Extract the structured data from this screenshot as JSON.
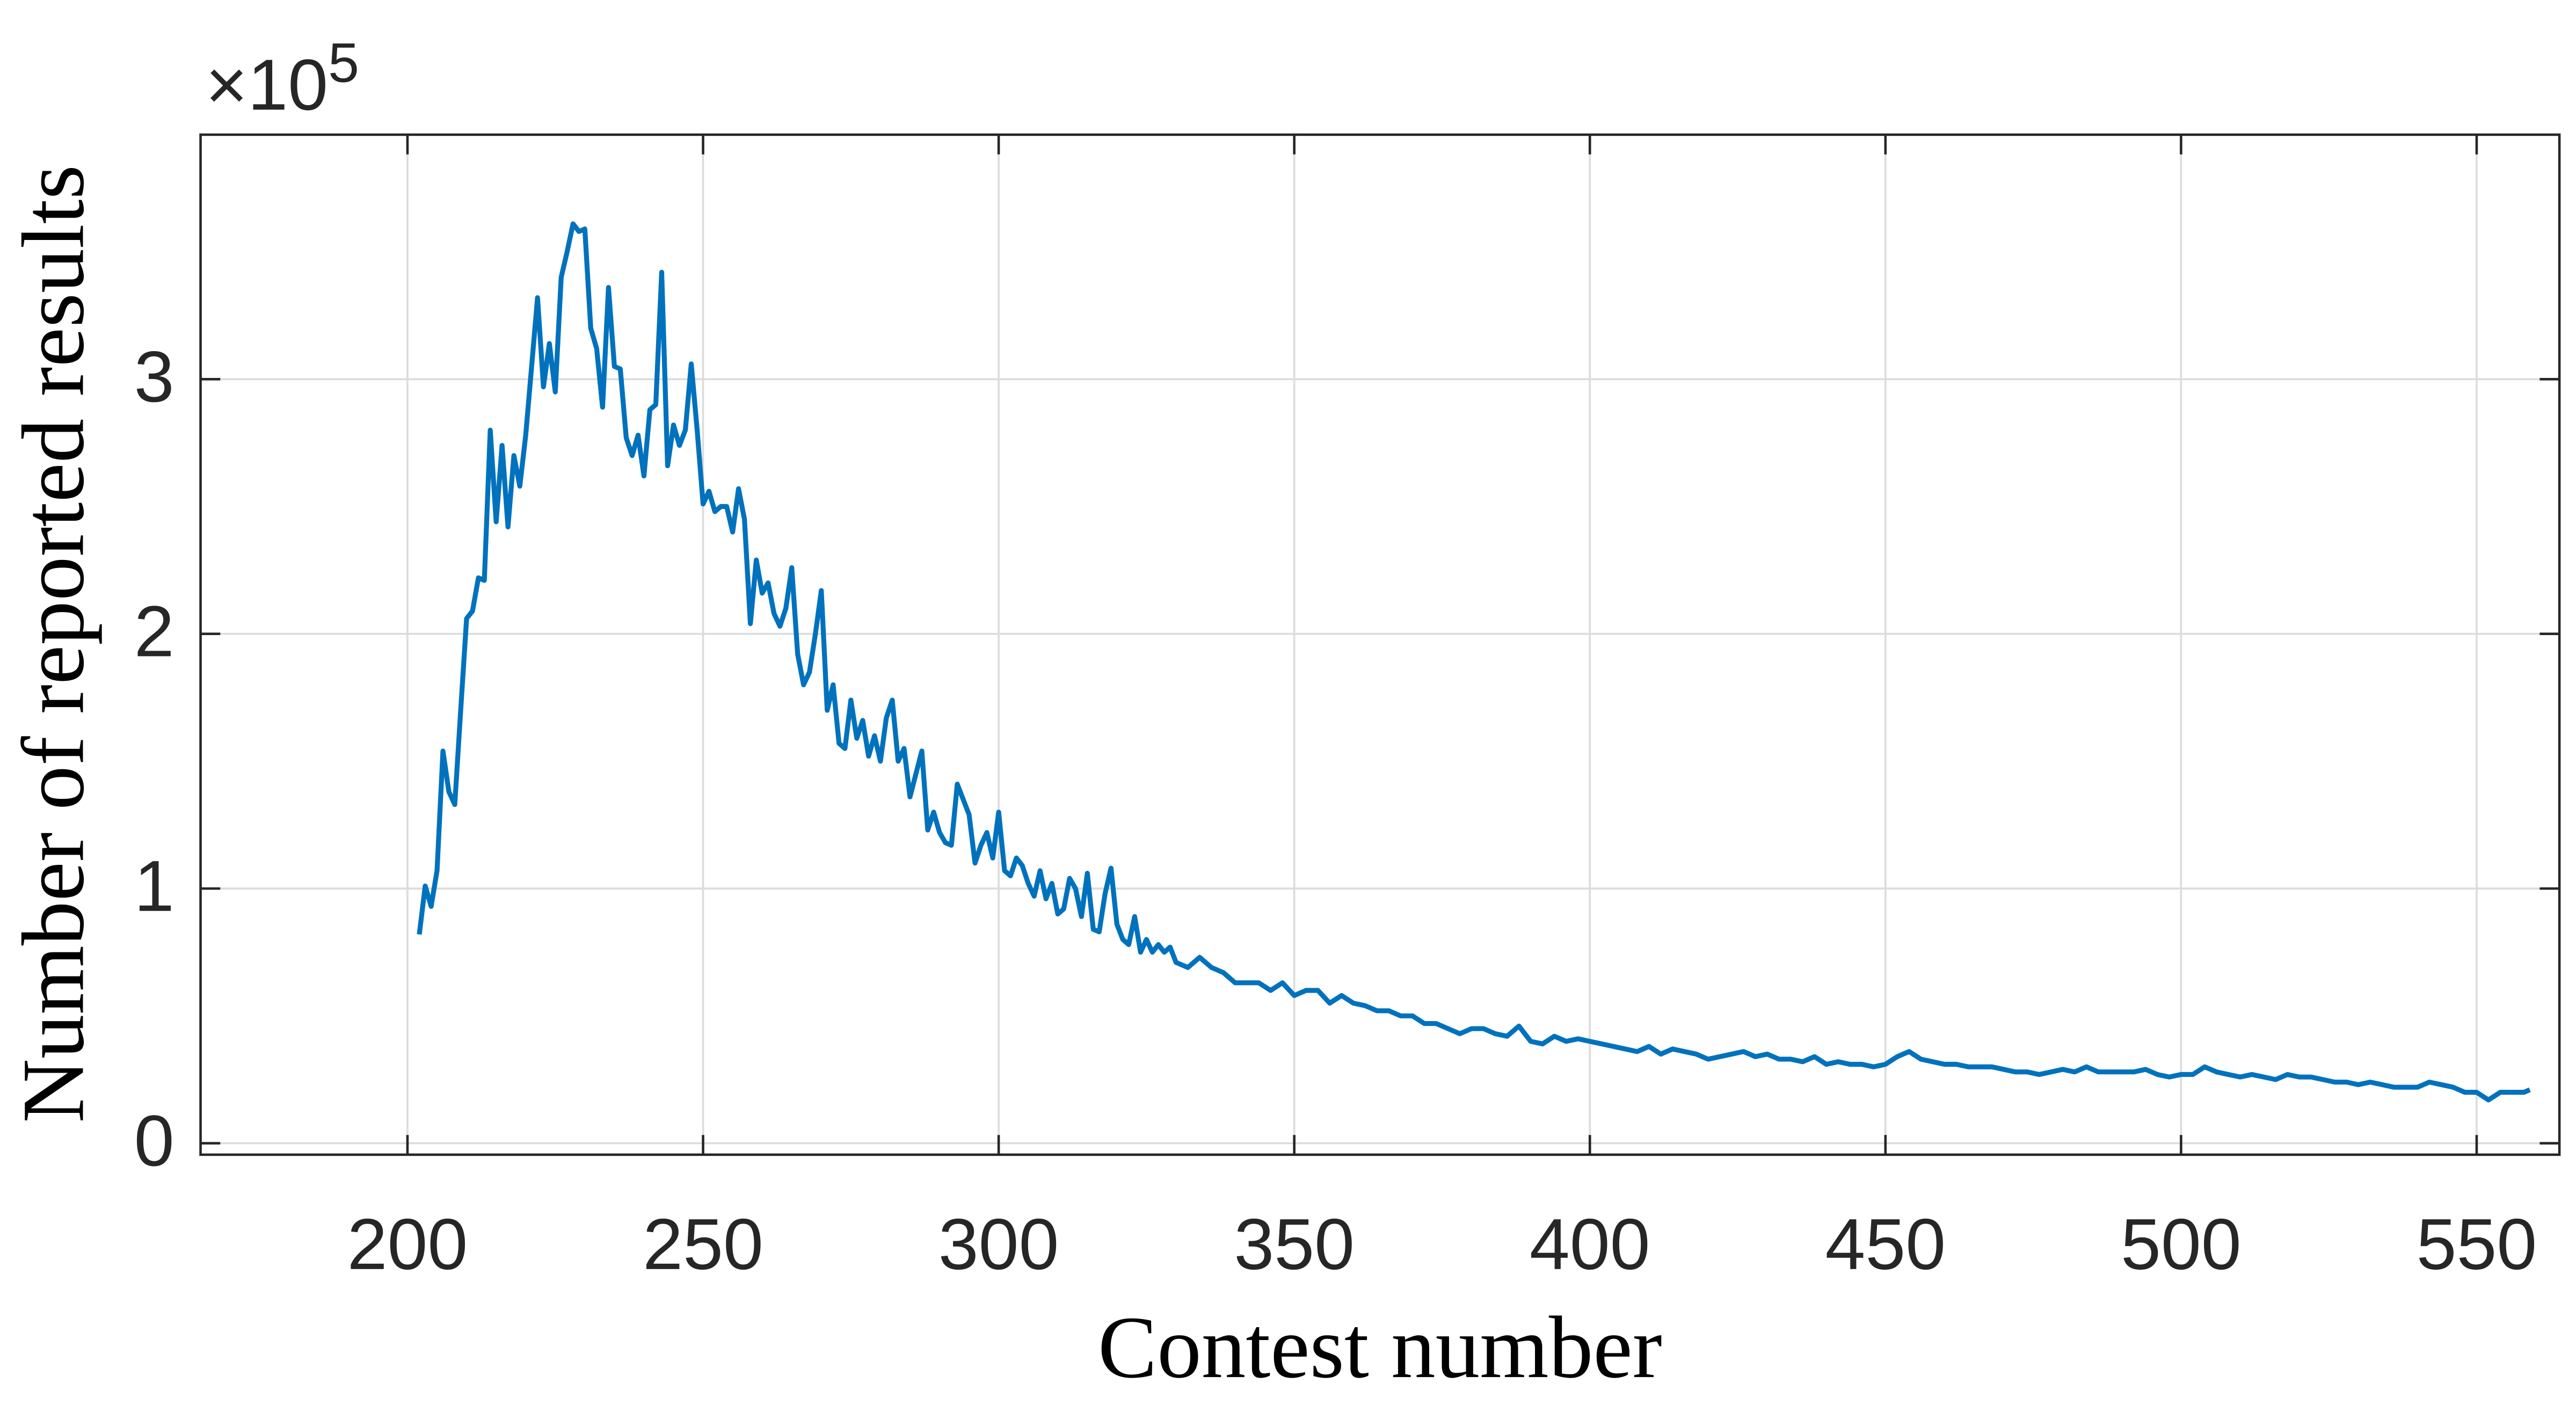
{
  "chart_data": {
    "type": "line",
    "xlabel": "Contest number",
    "ylabel": "Number of reported results",
    "y_multiplier": "×10",
    "y_multiplier_exponent": "5",
    "xlim": [
      165,
      564
    ],
    "xticks": [
      200,
      250,
      300,
      350,
      400,
      450,
      500,
      550
    ],
    "ylim": [
      -0.045,
      3.96
    ],
    "yticks": [
      0,
      1,
      2,
      3
    ],
    "grid": true,
    "series": [
      {
        "color": "#0072bd",
        "x": [
          202,
          203,
          204,
          205,
          206,
          207,
          208,
          209,
          210,
          211,
          212,
          213,
          214,
          215,
          216,
          217,
          218,
          219,
          220,
          221,
          222,
          223,
          224,
          225,
          226,
          227,
          228,
          229,
          230,
          231,
          232,
          233,
          234,
          235,
          236,
          237,
          238,
          239,
          240,
          241,
          242,
          243,
          244,
          245,
          246,
          247,
          248,
          249,
          250,
          251,
          252,
          253,
          254,
          255,
          256,
          257,
          258,
          259,
          260,
          261,
          262,
          263,
          264,
          265,
          266,
          267,
          268,
          269,
          270,
          271,
          272,
          273,
          274,
          275,
          276,
          277,
          278,
          279,
          280,
          281,
          282,
          283,
          284,
          285,
          286,
          287,
          288,
          289,
          290,
          291,
          292,
          293,
          294,
          295,
          296,
          297,
          298,
          299,
          300,
          301,
          302,
          303,
          304,
          305,
          306,
          307,
          308,
          309,
          310,
          311,
          312,
          313,
          314,
          315,
          316,
          317,
          318,
          319,
          320,
          321,
          322,
          323,
          324,
          325,
          326,
          327,
          328,
          329,
          330,
          332,
          334,
          336,
          338,
          340,
          342,
          344,
          346,
          348,
          350,
          352,
          354,
          356,
          358,
          360,
          362,
          364,
          366,
          368,
          370,
          372,
          374,
          376,
          378,
          380,
          382,
          384,
          386,
          388,
          390,
          392,
          394,
          396,
          398,
          400,
          402,
          404,
          406,
          408,
          410,
          412,
          414,
          416,
          418,
          420,
          422,
          424,
          426,
          428,
          430,
          432,
          434,
          436,
          438,
          440,
          442,
          444,
          446,
          448,
          450,
          452,
          454,
          456,
          458,
          460,
          462,
          464,
          466,
          468,
          470,
          472,
          474,
          476,
          478,
          480,
          482,
          484,
          486,
          488,
          490,
          492,
          494,
          496,
          498,
          500,
          502,
          504,
          506,
          508,
          510,
          512,
          514,
          516,
          518,
          520,
          522,
          524,
          526,
          528,
          530,
          532,
          534,
          536,
          538,
          540,
          542,
          544,
          546,
          548,
          550,
          552,
          554,
          556,
          558,
          559
        ],
        "values": [
          0.82,
          1.01,
          0.93,
          1.07,
          1.54,
          1.38,
          1.33,
          1.7,
          2.06,
          2.09,
          2.22,
          2.21,
          2.8,
          2.44,
          2.74,
          2.42,
          2.7,
          2.58,
          2.78,
          3.05,
          3.32,
          2.97,
          3.14,
          2.95,
          3.4,
          3.5,
          3.61,
          3.58,
          3.59,
          3.2,
          3.12,
          2.89,
          3.36,
          3.05,
          3.04,
          2.77,
          2.7,
          2.78,
          2.62,
          2.88,
          2.9,
          3.42,
          2.66,
          2.82,
          2.74,
          2.8,
          3.06,
          2.8,
          2.51,
          2.56,
          2.48,
          2.5,
          2.5,
          2.4,
          2.57,
          2.45,
          2.04,
          2.29,
          2.16,
          2.2,
          2.08,
          2.03,
          2.1,
          2.26,
          1.92,
          1.8,
          1.85,
          2.0,
          2.17,
          1.7,
          1.8,
          1.57,
          1.55,
          1.74,
          1.59,
          1.66,
          1.52,
          1.6,
          1.5,
          1.67,
          1.74,
          1.5,
          1.55,
          1.36,
          1.45,
          1.54,
          1.23,
          1.3,
          1.22,
          1.18,
          1.17,
          1.41,
          1.35,
          1.29,
          1.1,
          1.17,
          1.22,
          1.12,
          1.3,
          1.07,
          1.05,
          1.12,
          1.09,
          1.02,
          0.97,
          1.07,
          0.96,
          1.02,
          0.9,
          0.92,
          1.04,
          1.0,
          0.89,
          1.06,
          0.84,
          0.83,
          0.98,
          1.08,
          0.86,
          0.8,
          0.78,
          0.89,
          0.75,
          0.8,
          0.75,
          0.78,
          0.75,
          0.77,
          0.71,
          0.69,
          0.73,
          0.69,
          0.67,
          0.63,
          0.63,
          0.63,
          0.6,
          0.63,
          0.58,
          0.6,
          0.6,
          0.55,
          0.58,
          0.55,
          0.54,
          0.52,
          0.52,
          0.5,
          0.5,
          0.47,
          0.47,
          0.45,
          0.43,
          0.45,
          0.45,
          0.43,
          0.42,
          0.46,
          0.4,
          0.39,
          0.42,
          0.4,
          0.41,
          0.4,
          0.39,
          0.38,
          0.37,
          0.36,
          0.38,
          0.35,
          0.37,
          0.36,
          0.35,
          0.33,
          0.34,
          0.35,
          0.36,
          0.34,
          0.35,
          0.33,
          0.33,
          0.32,
          0.34,
          0.31,
          0.32,
          0.31,
          0.31,
          0.3,
          0.31,
          0.34,
          0.36,
          0.33,
          0.32,
          0.31,
          0.31,
          0.3,
          0.3,
          0.3,
          0.29,
          0.28,
          0.28,
          0.27,
          0.28,
          0.29,
          0.28,
          0.3,
          0.28,
          0.28,
          0.28,
          0.28,
          0.29,
          0.27,
          0.26,
          0.27,
          0.27,
          0.3,
          0.28,
          0.27,
          0.26,
          0.27,
          0.26,
          0.25,
          0.27,
          0.26,
          0.26,
          0.25,
          0.24,
          0.24,
          0.23,
          0.24,
          0.23,
          0.22,
          0.22,
          0.22,
          0.24,
          0.23,
          0.22,
          0.2,
          0.2,
          0.17,
          0.2,
          0.2,
          0.2,
          0.21
        ]
      }
    ]
  }
}
